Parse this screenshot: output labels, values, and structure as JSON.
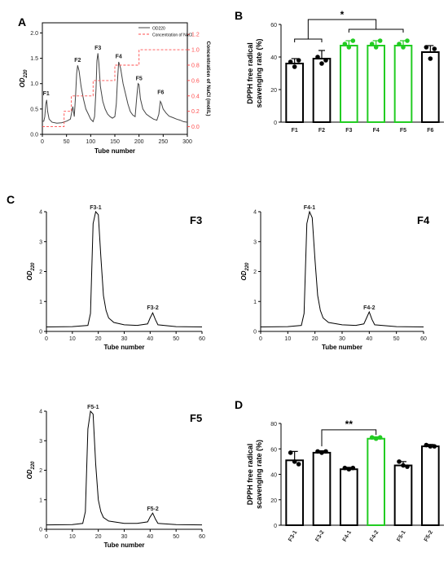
{
  "panels": {
    "A": "A",
    "B": "B",
    "C": "C",
    "D": "D"
  },
  "chart_data": [
    {
      "id": "A",
      "type": "line",
      "xlabel": "Tube number",
      "ylabel": "OD220",
      "y2label": "Concentration of NaCl (mol/L)",
      "xlim": [
        0,
        300
      ],
      "ylim": [
        0,
        2.2
      ],
      "y2lim": [
        -0.1,
        1.35
      ],
      "xticks": [
        0,
        50,
        100,
        150,
        200,
        250,
        300
      ],
      "yticks": [
        0.0,
        0.5,
        1.0,
        1.5,
        2.0
      ],
      "y2ticks": [
        0.0,
        0.2,
        0.4,
        0.6,
        0.8,
        1.0,
        1.2
      ],
      "legend": [
        "OD220",
        "Concentration of NaCl"
      ],
      "peak_labels": [
        {
          "label": "F1",
          "x": 8,
          "y": 0.72
        },
        {
          "label": "F2",
          "x": 73,
          "y": 1.38
        },
        {
          "label": "F3",
          "x": 115,
          "y": 1.62
        },
        {
          "label": "F4",
          "x": 158,
          "y": 1.45
        },
        {
          "label": "F5",
          "x": 200,
          "y": 1.02
        },
        {
          "label": "F6",
          "x": 245,
          "y": 0.75
        }
      ],
      "series": [
        {
          "name": "OD220",
          "color": "#444444",
          "x": [
            0,
            3,
            5,
            7,
            9,
            11,
            14,
            20,
            30,
            40,
            50,
            58,
            63,
            66,
            69,
            71,
            73,
            76,
            80,
            85,
            90,
            95,
            100,
            105,
            108,
            111,
            113,
            115,
            117,
            120,
            125,
            130,
            135,
            140,
            145,
            150,
            153,
            155,
            158,
            162,
            167,
            172,
            177,
            182,
            187,
            192,
            195,
            198,
            200,
            203,
            208,
            215,
            222,
            230,
            237,
            241,
            244,
            246,
            250,
            256,
            262,
            270,
            278,
            285,
            292,
            300
          ],
          "y": [
            0.25,
            0.26,
            0.35,
            0.6,
            0.68,
            0.45,
            0.3,
            0.24,
            0.22,
            0.23,
            0.26,
            0.3,
            0.55,
            0.35,
            0.8,
            1.2,
            1.36,
            1.25,
            0.95,
            0.7,
            0.5,
            0.4,
            0.3,
            0.25,
            0.35,
            0.9,
            1.45,
            1.6,
            1.4,
            0.95,
            0.65,
            0.5,
            0.4,
            0.35,
            0.32,
            0.35,
            0.6,
            1.0,
            1.43,
            1.3,
            1.0,
            0.8,
            0.6,
            0.45,
            0.38,
            0.35,
            0.7,
            1.0,
            0.98,
            0.7,
            0.5,
            0.4,
            0.35,
            0.3,
            0.28,
            0.4,
            0.65,
            0.62,
            0.5,
            0.42,
            0.36,
            0.33,
            0.3,
            0.28,
            0.25,
            0.24
          ]
        },
        {
          "name": "Concentration of NaCl",
          "color": "#ff4d4d",
          "x": [
            0,
            45,
            45,
            60,
            60,
            105,
            105,
            150,
            150,
            200,
            200,
            240,
            240,
            300
          ],
          "y": [
            0.0,
            0.0,
            0.2,
            0.2,
            0.4,
            0.4,
            0.6,
            0.6,
            0.8,
            0.8,
            1.0,
            1.0,
            1.0,
            1.0
          ]
        }
      ]
    },
    {
      "id": "B",
      "type": "bar",
      "ylabel": "DPPH free radical scavenging rate (%)",
      "ylim": [
        0,
        60
      ],
      "yticks": [
        0,
        20,
        40,
        60
      ],
      "categories": [
        "F1",
        "F2",
        "F3",
        "F4",
        "F5",
        "F6"
      ],
      "values": [
        36,
        39,
        47,
        47,
        47,
        43
      ],
      "errors": [
        3,
        5,
        3,
        3,
        3,
        4
      ],
      "points": [
        [
          37,
          34,
          38
        ],
        [
          40,
          36,
          38
        ],
        [
          48,
          46,
          50
        ],
        [
          48,
          46,
          50
        ],
        [
          48,
          46,
          50
        ],
        [
          46,
          39,
          45
        ]
      ],
      "colors": [
        "#000000",
        "#000000",
        "#22cc22",
        "#22cc22",
        "#22cc22",
        "#000000"
      ],
      "significance": "*"
    },
    {
      "id": "C-F3",
      "type": "line",
      "panel_label": "F3",
      "xlabel": "Tube number",
      "ylabel": "OD220",
      "xlim": [
        0,
        60
      ],
      "ylim": [
        0,
        4
      ],
      "xticks": [
        0,
        10,
        20,
        30,
        40,
        50,
        60
      ],
      "yticks": [
        0,
        1,
        2,
        3,
        4
      ],
      "peak_labels": [
        {
          "label": "F3-1",
          "x": 19,
          "y": 4.0
        },
        {
          "label": "F3-2",
          "x": 41,
          "y": 0.65
        }
      ],
      "series": [
        {
          "name": "OD220",
          "x": [
            0,
            10,
            16,
            17,
            18,
            19,
            20,
            21,
            22,
            23,
            24,
            26,
            30,
            35,
            39,
            40,
            41,
            42,
            43,
            50,
            60
          ],
          "y": [
            0.15,
            0.16,
            0.2,
            0.6,
            3.6,
            4.0,
            3.9,
            2.5,
            1.2,
            0.7,
            0.45,
            0.3,
            0.22,
            0.2,
            0.25,
            0.45,
            0.62,
            0.4,
            0.22,
            0.16,
            0.15
          ]
        }
      ]
    },
    {
      "id": "C-F4",
      "type": "line",
      "panel_label": "F4",
      "xlabel": "Tube number",
      "ylabel": "OD220",
      "xlim": [
        0,
        60
      ],
      "ylim": [
        0,
        4
      ],
      "xticks": [
        0,
        10,
        20,
        30,
        40,
        50,
        60
      ],
      "yticks": [
        0,
        1,
        2,
        3,
        4
      ],
      "peak_labels": [
        {
          "label": "F4-1",
          "x": 18,
          "y": 4.0
        },
        {
          "label": "F4-2",
          "x": 40,
          "y": 0.65
        }
      ],
      "series": [
        {
          "name": "OD220",
          "x": [
            0,
            10,
            15,
            16,
            17,
            18,
            19,
            20,
            21,
            22,
            23,
            25,
            30,
            35,
            38,
            39,
            40,
            41,
            42,
            50,
            60
          ],
          "y": [
            0.15,
            0.16,
            0.2,
            0.6,
            3.6,
            4.0,
            3.8,
            2.4,
            1.2,
            0.7,
            0.45,
            0.3,
            0.22,
            0.2,
            0.25,
            0.45,
            0.65,
            0.4,
            0.22,
            0.16,
            0.15
          ]
        }
      ]
    },
    {
      "id": "C-F5",
      "type": "line",
      "panel_label": "F5",
      "xlabel": "Tube number",
      "ylabel": "OD220",
      "xlim": [
        0,
        60
      ],
      "ylim": [
        0,
        4
      ],
      "xticks": [
        0,
        10,
        20,
        30,
        40,
        50,
        60
      ],
      "yticks": [
        0,
        1,
        2,
        3,
        4
      ],
      "peak_labels": [
        {
          "label": "F5-1",
          "x": 18,
          "y": 4.0
        },
        {
          "label": "F5-2",
          "x": 41,
          "y": 0.55
        }
      ],
      "series": [
        {
          "name": "OD220",
          "x": [
            0,
            10,
            14,
            15,
            16,
            17,
            18,
            19,
            20,
            21,
            22,
            24,
            30,
            35,
            39,
            40,
            41,
            42,
            43,
            50,
            60
          ],
          "y": [
            0.15,
            0.16,
            0.2,
            0.6,
            3.4,
            4.0,
            3.9,
            2.2,
            1.0,
            0.6,
            0.4,
            0.28,
            0.2,
            0.2,
            0.25,
            0.42,
            0.55,
            0.35,
            0.2,
            0.16,
            0.15
          ]
        }
      ]
    },
    {
      "id": "D",
      "type": "bar",
      "ylabel": "DPPH free radical scavenging rate (%)",
      "ylim": [
        0,
        80
      ],
      "yticks": [
        0,
        20,
        40,
        60,
        80
      ],
      "categories": [
        "F3-1",
        "F3-2",
        "F4-1",
        "F4-2",
        "F5-1",
        "F5-2"
      ],
      "values": [
        51,
        57,
        44,
        68,
        47,
        62
      ],
      "errors": [
        7,
        1.5,
        1.5,
        1.5,
        3,
        1.5
      ],
      "points": [
        [
          57,
          50,
          48
        ],
        [
          58,
          57,
          58
        ],
        [
          45,
          44,
          45
        ],
        [
          69,
          68,
          69
        ],
        [
          50,
          47,
          46
        ],
        [
          63,
          62,
          62
        ]
      ],
      "colors": [
        "#000000",
        "#000000",
        "#000000",
        "#22cc22",
        "#000000",
        "#000000"
      ],
      "significance": "**"
    }
  ]
}
